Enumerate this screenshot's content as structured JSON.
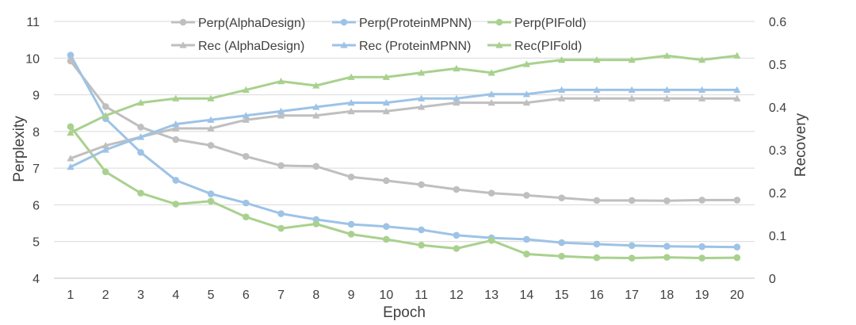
{
  "chart_data": {
    "type": "line",
    "title": "",
    "xlabel": "Epoch",
    "ylabel": "Perplexity",
    "y2label": "Recovery",
    "x": [
      1,
      2,
      3,
      4,
      5,
      6,
      7,
      8,
      9,
      10,
      11,
      12,
      13,
      14,
      15,
      16,
      17,
      18,
      19,
      20
    ],
    "x_tick_labels": [
      "1",
      "2",
      "3",
      "4",
      "5",
      "6",
      "7",
      "8",
      "9",
      "10",
      "11",
      "12",
      "13",
      "14",
      "15",
      "16",
      "17",
      "18",
      "19",
      "20"
    ],
    "ylim": [
      4,
      11
    ],
    "y_ticks": [
      4,
      5,
      6,
      7,
      8,
      9,
      10,
      11
    ],
    "y_tick_labels": [
      "4",
      "5",
      "6",
      "7",
      "8",
      "9",
      "10",
      "11"
    ],
    "y2lim": [
      0,
      0.6
    ],
    "y2_ticks": [
      0,
      0.1,
      0.2,
      0.3,
      0.4,
      0.5,
      0.6
    ],
    "y2_tick_labels": [
      "0",
      "0.1",
      "0.2",
      "0.3",
      "0.4",
      "0.5",
      "0.6"
    ],
    "grid": true,
    "legend_position": "top-center",
    "series": [
      {
        "name": "Perp(AlphaDesign)",
        "axis": "left",
        "marker": "circle",
        "color": "#bfbfbf",
        "values": [
          9.92,
          8.68,
          8.12,
          7.78,
          7.62,
          7.32,
          7.07,
          7.05,
          6.76,
          6.66,
          6.55,
          6.42,
          6.32,
          6.26,
          6.19,
          6.12,
          6.12,
          6.11,
          6.13,
          6.13
        ]
      },
      {
        "name": "Perp(ProteinMPNN)",
        "axis": "left",
        "marker": "circle",
        "color": "#9dc3e6",
        "values": [
          10.08,
          8.35,
          7.43,
          6.67,
          6.3,
          6.05,
          5.76,
          5.6,
          5.47,
          5.41,
          5.32,
          5.17,
          5.1,
          5.06,
          4.97,
          4.93,
          4.89,
          4.87,
          4.86,
          4.85
        ]
      },
      {
        "name": "Perp(PIFold)",
        "axis": "left",
        "marker": "circle",
        "color": "#a9d18e",
        "values": [
          8.13,
          6.9,
          6.32,
          6.02,
          6.1,
          5.67,
          5.36,
          5.48,
          5.2,
          5.06,
          4.9,
          4.81,
          5.03,
          4.66,
          4.6,
          4.56,
          4.55,
          4.57,
          4.55,
          4.56
        ]
      },
      {
        "name": "Rec (AlphaDesign)",
        "axis": "right",
        "marker": "triangle",
        "color": "#bfbfbf",
        "values": [
          0.28,
          0.31,
          0.33,
          0.35,
          0.35,
          0.37,
          0.38,
          0.38,
          0.39,
          0.39,
          0.4,
          0.41,
          0.41,
          0.41,
          0.42,
          0.42,
          0.42,
          0.42,
          0.42,
          0.42
        ]
      },
      {
        "name": "Rec (ProteinMPNN)",
        "axis": "right",
        "marker": "triangle",
        "color": "#9dc3e6",
        "values": [
          0.26,
          0.3,
          0.33,
          0.36,
          0.37,
          0.38,
          0.39,
          0.4,
          0.41,
          0.41,
          0.42,
          0.42,
          0.43,
          0.43,
          0.44,
          0.44,
          0.44,
          0.44,
          0.44,
          0.44
        ]
      },
      {
        "name": "Rec(PIFold)",
        "axis": "right",
        "marker": "triangle",
        "color": "#a9d18e",
        "values": [
          0.34,
          0.38,
          0.41,
          0.42,
          0.42,
          0.44,
          0.46,
          0.45,
          0.47,
          0.47,
          0.48,
          0.49,
          0.48,
          0.5,
          0.51,
          0.51,
          0.51,
          0.52,
          0.51,
          0.52
        ]
      }
    ]
  }
}
